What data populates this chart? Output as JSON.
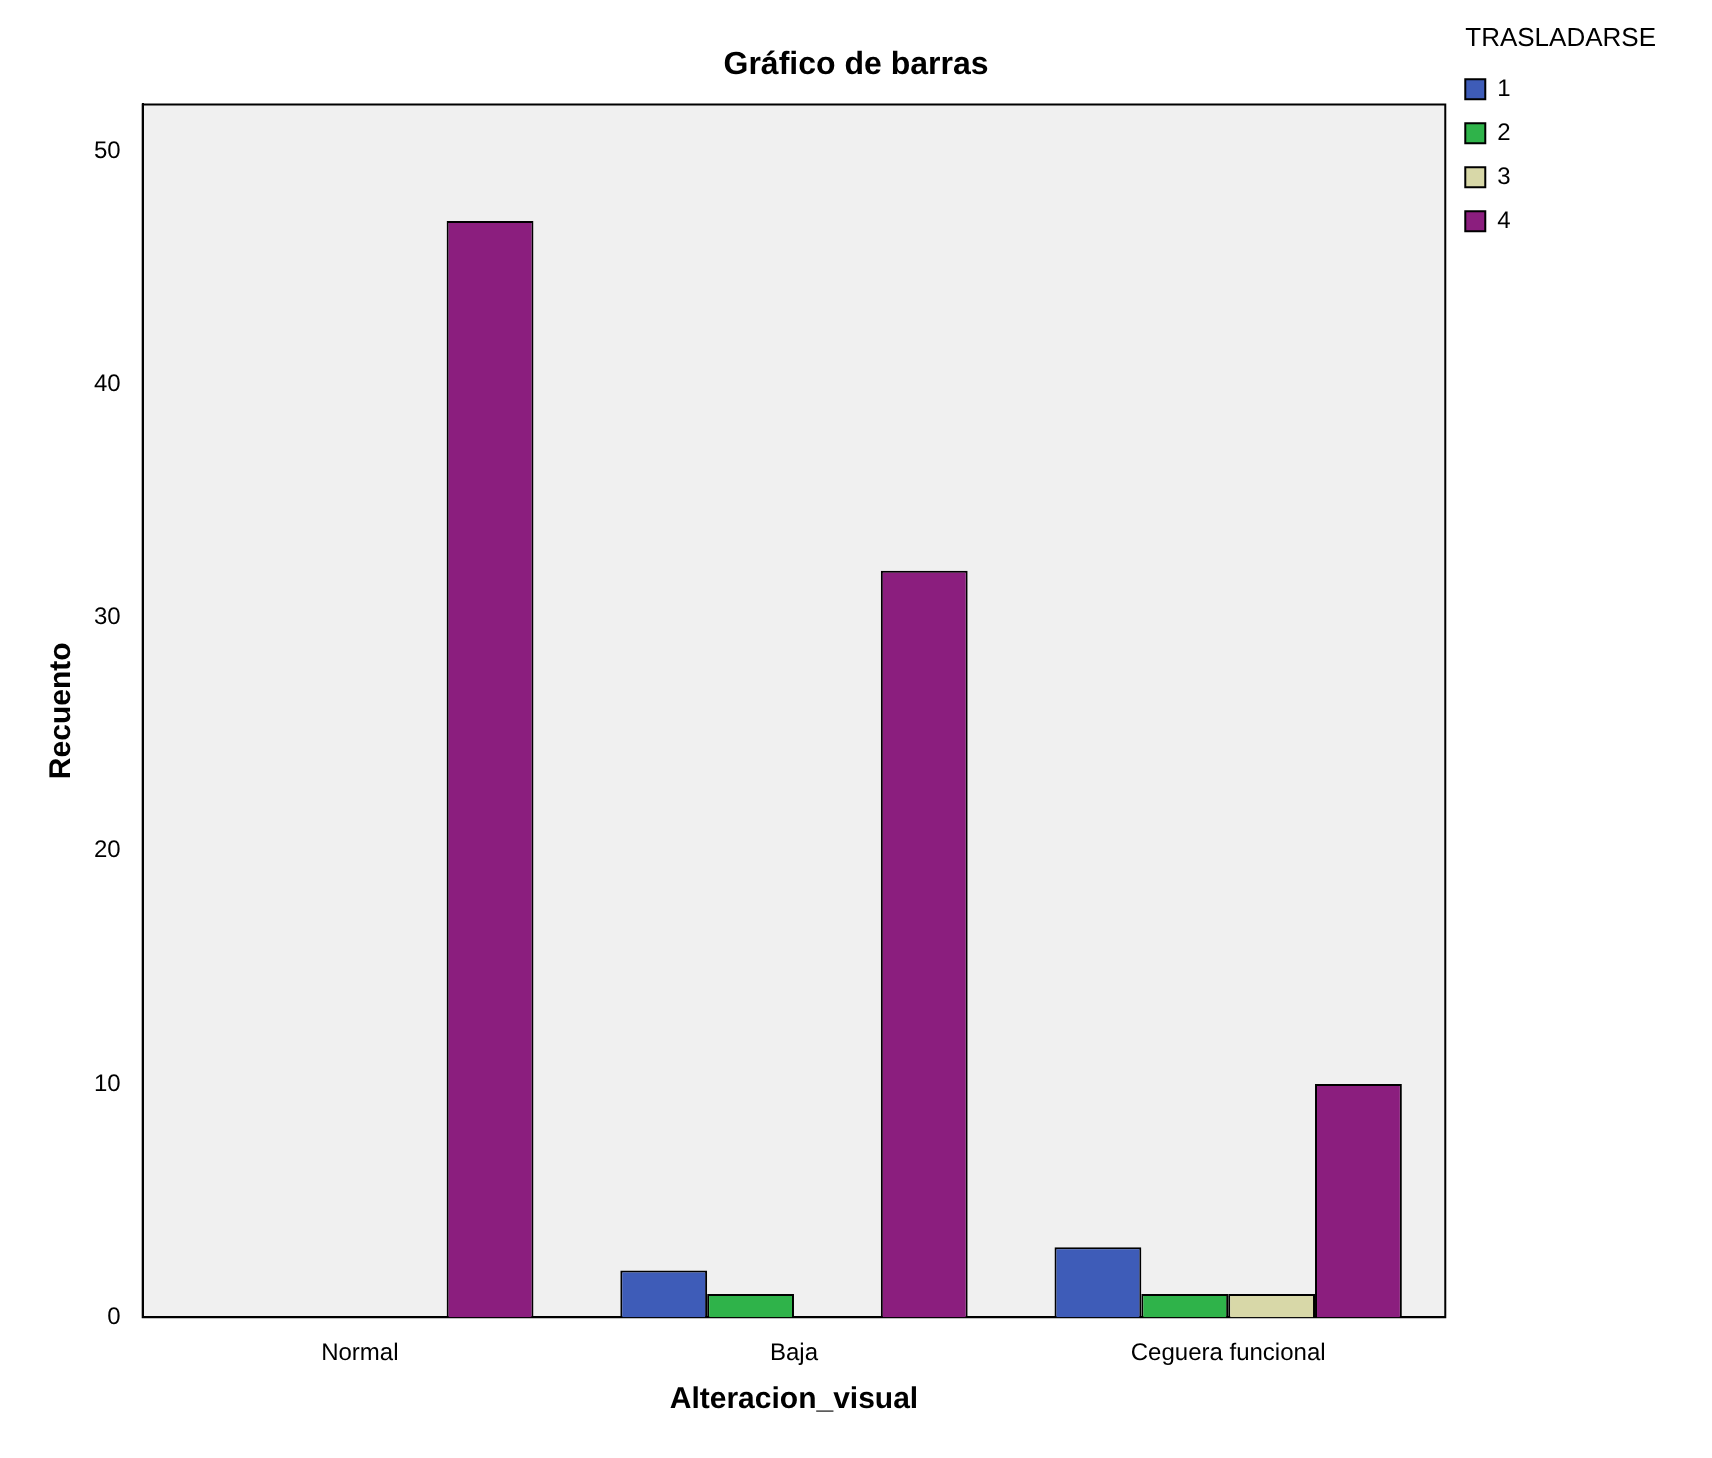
{
  "chart_data": {
    "type": "bar",
    "title": "Gráfico de barras",
    "xlabel": "Alteracion_visual",
    "ylabel": "Recuento",
    "legend_title": "TRASLADARSE",
    "categories": [
      "Normal",
      "Baja",
      "Ceguera funcional"
    ],
    "series": [
      {
        "name": "1",
        "color": "#3e5cb8",
        "values": [
          null,
          2,
          3
        ]
      },
      {
        "name": "2",
        "color": "#2fb34a",
        "values": [
          null,
          1,
          1
        ]
      },
      {
        "name": "3",
        "color": "#d8d8a8",
        "values": [
          null,
          null,
          1
        ]
      },
      {
        "name": "4",
        "color": "#8b1e7e",
        "values": [
          47,
          32,
          10
        ]
      }
    ],
    "ylim": [
      0,
      52
    ],
    "yticks": [
      0,
      10,
      20,
      30,
      40,
      50
    ],
    "grid": false,
    "legend": "top right"
  }
}
